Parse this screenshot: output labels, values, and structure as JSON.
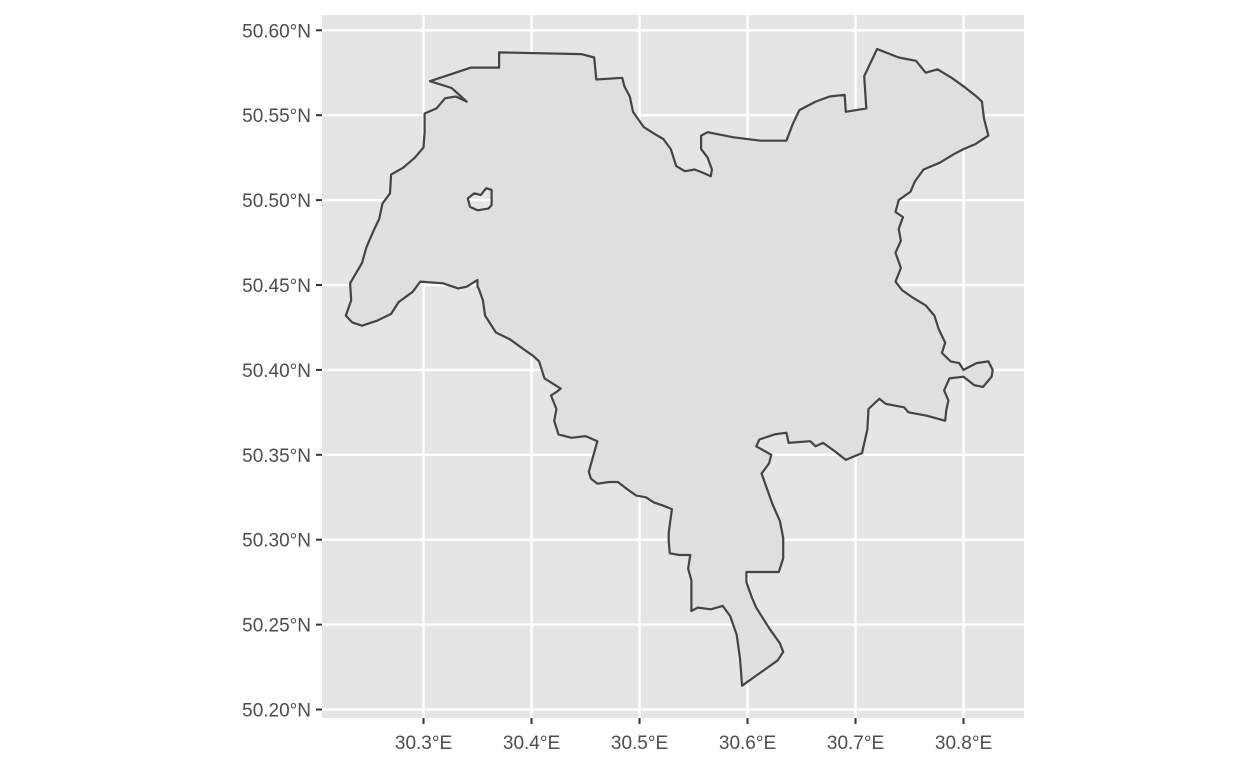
{
  "chart_data": {
    "type": "map",
    "style": {
      "panel_background": "#e5e5e5",
      "grid_color": "#ffffff",
      "polygon_fill": "#dfdfdf",
      "polygon_stroke": "#444444",
      "tick_text_color": "#4d4d4d",
      "tick_mark_color": "#333333"
    },
    "grid": true,
    "xlim": [
      30.206,
      30.856
    ],
    "ylim": [
      50.195,
      50.609
    ],
    "x_ticks": [
      {
        "value": 30.3,
        "label": "30.3°E"
      },
      {
        "value": 30.4,
        "label": "30.4°E"
      },
      {
        "value": 30.5,
        "label": "30.5°E"
      },
      {
        "value": 30.6,
        "label": "30.6°E"
      },
      {
        "value": 30.7,
        "label": "30.7°E"
      },
      {
        "value": 30.8,
        "label": "30.8°E"
      }
    ],
    "y_ticks": [
      {
        "value": 50.6,
        "label": "50.60°N"
      },
      {
        "value": 50.55,
        "label": "50.55°N"
      },
      {
        "value": 50.5,
        "label": "50.50°N"
      },
      {
        "value": 50.45,
        "label": "50.45°N"
      },
      {
        "value": 50.4,
        "label": "50.40°N"
      },
      {
        "value": 50.35,
        "label": "50.35°N"
      },
      {
        "value": 50.3,
        "label": "50.30°N"
      },
      {
        "value": 50.25,
        "label": "50.25°N"
      },
      {
        "value": 50.2,
        "label": "50.20°N"
      }
    ],
    "outline": [
      [
        30.306,
        50.57
      ],
      [
        30.344,
        50.578
      ],
      [
        30.37,
        50.578
      ],
      [
        30.37,
        50.587
      ],
      [
        30.446,
        50.586
      ],
      [
        30.458,
        50.584
      ],
      [
        30.46,
        50.571
      ],
      [
        30.484,
        50.572
      ],
      [
        30.486,
        50.567
      ],
      [
        30.491,
        50.561
      ],
      [
        30.494,
        50.552
      ],
      [
        30.504,
        50.543
      ],
      [
        30.514,
        50.539
      ],
      [
        30.522,
        50.536
      ],
      [
        30.529,
        50.53
      ],
      [
        30.534,
        50.52
      ],
      [
        30.542,
        50.517
      ],
      [
        30.551,
        50.518
      ],
      [
        30.559,
        50.516
      ],
      [
        30.566,
        50.514
      ],
      [
        30.567,
        50.518
      ],
      [
        30.563,
        50.525
      ],
      [
        30.557,
        50.53
      ],
      [
        30.557,
        50.538
      ],
      [
        30.563,
        50.54
      ],
      [
        30.587,
        50.537
      ],
      [
        30.612,
        50.535
      ],
      [
        30.636,
        50.535
      ],
      [
        30.642,
        50.545
      ],
      [
        30.648,
        50.553
      ],
      [
        30.663,
        50.558
      ],
      [
        30.676,
        50.561
      ],
      [
        30.69,
        50.562
      ],
      [
        30.691,
        50.552
      ],
      [
        30.71,
        50.554
      ],
      [
        30.708,
        50.573
      ],
      [
        30.72,
        50.589
      ],
      [
        30.74,
        50.584
      ],
      [
        30.756,
        50.582
      ],
      [
        30.765,
        50.575
      ],
      [
        30.776,
        50.577
      ],
      [
        30.789,
        50.572
      ],
      [
        30.8,
        50.567
      ],
      [
        30.812,
        50.561
      ],
      [
        30.817,
        50.558
      ],
      [
        30.819,
        50.548
      ],
      [
        30.823,
        50.538
      ],
      [
        30.811,
        50.533
      ],
      [
        30.8,
        50.53
      ],
      [
        30.791,
        50.527
      ],
      [
        30.778,
        50.522
      ],
      [
        30.763,
        50.518
      ],
      [
        30.755,
        50.511
      ],
      [
        30.751,
        50.505
      ],
      [
        30.74,
        50.5
      ],
      [
        30.737,
        50.493
      ],
      [
        30.744,
        50.49
      ],
      [
        30.74,
        50.483
      ],
      [
        30.742,
        50.476
      ],
      [
        30.737,
        50.469
      ],
      [
        30.742,
        50.46
      ],
      [
        30.737,
        50.452
      ],
      [
        30.743,
        50.447
      ],
      [
        30.752,
        50.443
      ],
      [
        30.765,
        50.438
      ],
      [
        30.773,
        50.432
      ],
      [
        30.777,
        50.424
      ],
      [
        30.783,
        50.416
      ],
      [
        30.78,
        50.41
      ],
      [
        30.788,
        50.405
      ],
      [
        30.796,
        50.404
      ],
      [
        30.8,
        50.4
      ],
      [
        30.812,
        50.404
      ],
      [
        30.823,
        50.405
      ],
      [
        30.827,
        50.4
      ],
      [
        30.826,
        50.396
      ],
      [
        30.818,
        50.39
      ],
      [
        30.81,
        50.391
      ],
      [
        30.8,
        50.396
      ],
      [
        30.787,
        50.395
      ],
      [
        30.782,
        50.388
      ],
      [
        30.786,
        50.382
      ],
      [
        30.784,
        50.376
      ],
      [
        30.783,
        50.37
      ],
      [
        30.766,
        50.373
      ],
      [
        30.749,
        50.375
      ],
      [
        30.745,
        50.378
      ],
      [
        30.728,
        50.38
      ],
      [
        30.722,
        50.383
      ],
      [
        30.712,
        50.377
      ],
      [
        30.711,
        50.365
      ],
      [
        30.706,
        50.351
      ],
      [
        30.691,
        50.347
      ],
      [
        30.681,
        50.352
      ],
      [
        30.67,
        50.357
      ],
      [
        30.663,
        50.355
      ],
      [
        30.658,
        50.358
      ],
      [
        30.638,
        50.357
      ],
      [
        30.636,
        50.363
      ],
      [
        30.625,
        50.362
      ],
      [
        30.611,
        50.359
      ],
      [
        30.608,
        50.355
      ],
      [
        30.622,
        50.35
      ],
      [
        30.62,
        50.345
      ],
      [
        30.613,
        50.339
      ],
      [
        30.618,
        50.33
      ],
      [
        30.623,
        50.321
      ],
      [
        30.63,
        50.311
      ],
      [
        30.633,
        50.301
      ],
      [
        30.633,
        50.289
      ],
      [
        30.629,
        50.281
      ],
      [
        30.62,
        50.281
      ],
      [
        30.599,
        50.281
      ],
      [
        30.599,
        50.275
      ],
      [
        30.604,
        50.266
      ],
      [
        30.608,
        50.26
      ],
      [
        30.614,
        50.254
      ],
      [
        30.621,
        50.247
      ],
      [
        30.63,
        50.239
      ],
      [
        30.633,
        50.234
      ],
      [
        30.628,
        50.229
      ],
      [
        30.595,
        50.214
      ],
      [
        30.593,
        50.23
      ],
      [
        30.59,
        50.244
      ],
      [
        30.584,
        50.255
      ],
      [
        30.577,
        50.261
      ],
      [
        30.566,
        50.259
      ],
      [
        30.554,
        50.26
      ],
      [
        30.548,
        50.258
      ],
      [
        30.548,
        50.267
      ],
      [
        30.548,
        50.276
      ],
      [
        30.545,
        50.283
      ],
      [
        30.547,
        50.291
      ],
      [
        30.537,
        50.291
      ],
      [
        30.528,
        50.292
      ],
      [
        30.527,
        50.299
      ],
      [
        30.527,
        50.304
      ],
      [
        30.53,
        50.318
      ],
      [
        30.522,
        50.32
      ],
      [
        30.513,
        50.322
      ],
      [
        30.506,
        50.325
      ],
      [
        30.497,
        50.326
      ],
      [
        30.488,
        50.33
      ],
      [
        30.48,
        50.334
      ],
      [
        30.472,
        50.334
      ],
      [
        30.461,
        50.333
      ],
      [
        30.455,
        50.336
      ],
      [
        30.453,
        50.34
      ],
      [
        30.461,
        50.358
      ],
      [
        30.45,
        50.361
      ],
      [
        30.437,
        50.36
      ],
      [
        30.425,
        50.362
      ],
      [
        30.421,
        50.37
      ],
      [
        30.423,
        50.377
      ],
      [
        30.418,
        50.385
      ],
      [
        30.423,
        50.387
      ],
      [
        30.427,
        50.389
      ],
      [
        30.412,
        50.395
      ],
      [
        30.407,
        50.405
      ],
      [
        30.402,
        50.408
      ],
      [
        30.393,
        50.412
      ],
      [
        30.38,
        50.418
      ],
      [
        30.367,
        50.422
      ],
      [
        30.357,
        50.432
      ],
      [
        30.355,
        50.441
      ],
      [
        30.351,
        50.448
      ],
      [
        30.35,
        50.449
      ],
      [
        30.35,
        50.453
      ],
      [
        30.34,
        50.449
      ],
      [
        30.332,
        50.448
      ],
      [
        30.318,
        50.451
      ],
      [
        30.297,
        50.452
      ],
      [
        30.29,
        50.446
      ],
      [
        30.277,
        50.44
      ],
      [
        30.27,
        50.433
      ],
      [
        30.257,
        50.429
      ],
      [
        30.243,
        50.426
      ],
      [
        30.234,
        50.428
      ],
      [
        30.228,
        50.432
      ],
      [
        30.233,
        50.441
      ],
      [
        30.232,
        50.451
      ],
      [
        30.243,
        50.463
      ],
      [
        30.247,
        50.472
      ],
      [
        30.253,
        50.481
      ],
      [
        30.259,
        50.489
      ],
      [
        30.262,
        50.498
      ],
      [
        30.269,
        50.504
      ],
      [
        30.27,
        50.515
      ],
      [
        30.281,
        50.519
      ],
      [
        30.292,
        50.525
      ],
      [
        30.3,
        50.531
      ],
      [
        30.301,
        50.54
      ],
      [
        30.301,
        50.551
      ],
      [
        30.312,
        50.554
      ],
      [
        30.32,
        50.56
      ],
      [
        30.33,
        50.561
      ],
      [
        30.34,
        50.558
      ],
      [
        30.326,
        50.566
      ],
      [
        30.306,
        50.57
      ]
    ],
    "holes": [
      [
        [
          30.341,
          50.501
        ],
        [
          30.347,
          50.504
        ],
        [
          30.353,
          50.503
        ],
        [
          30.358,
          50.507
        ],
        [
          30.363,
          50.506
        ],
        [
          30.363,
          50.497
        ],
        [
          30.36,
          50.495
        ],
        [
          30.35,
          50.494
        ],
        [
          30.343,
          50.496
        ],
        [
          30.341,
          50.501
        ]
      ]
    ]
  }
}
